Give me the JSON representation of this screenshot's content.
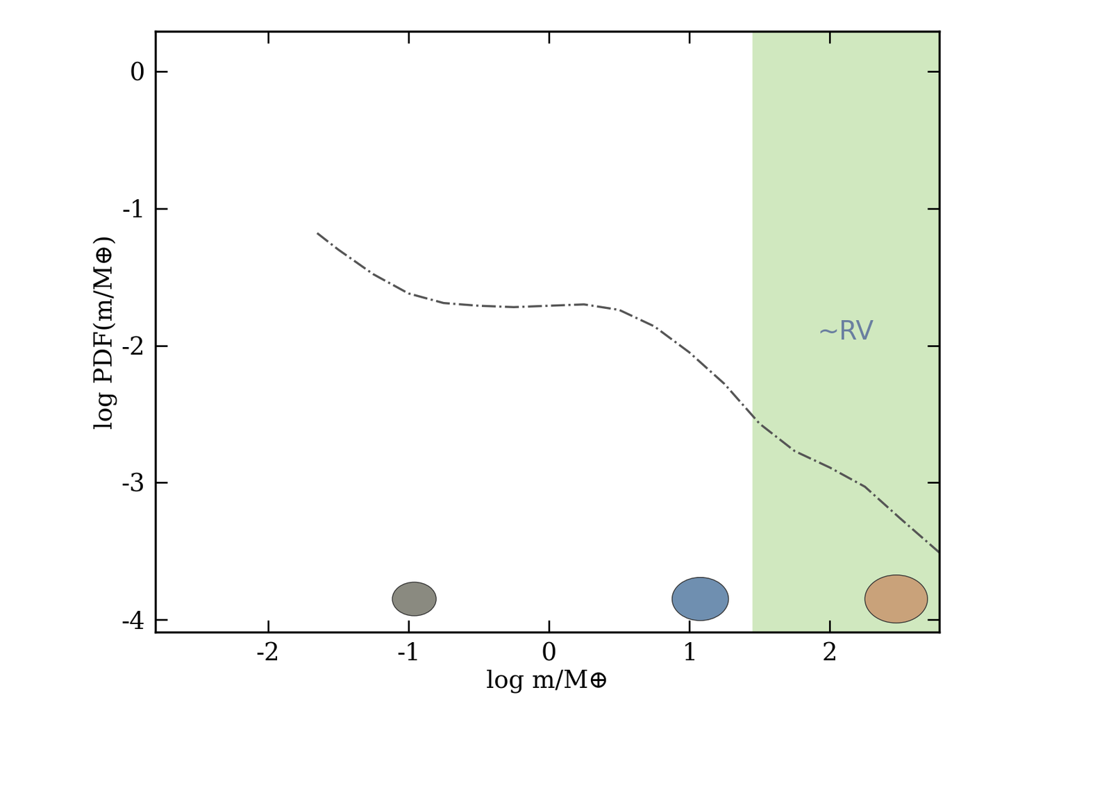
{
  "chart_data": {
    "type": "line",
    "x_label": "log m/M⊕",
    "y_label": "log PDF(m/M⊕)",
    "x": [
      -1.65,
      -1.5,
      -1.25,
      -1.0,
      -0.75,
      -0.5,
      -0.25,
      0.0,
      0.25,
      0.5,
      0.75,
      1.0,
      1.25,
      1.5,
      1.75,
      2.0,
      2.25,
      2.5,
      2.78
    ],
    "values": [
      -1.18,
      -1.3,
      -1.48,
      -1.62,
      -1.69,
      -1.71,
      -1.72,
      -1.71,
      -1.7,
      -1.74,
      -1.86,
      -2.05,
      -2.28,
      -2.57,
      -2.77,
      -2.89,
      -3.03,
      -3.26,
      -3.51
    ],
    "color": "#555555",
    "line_style": "dashdot",
    "xlim": [
      -2.8,
      2.78
    ],
    "ylim": [
      -4.09,
      0.29
    ],
    "xticks": [
      -2,
      -1,
      0,
      1,
      2
    ],
    "yticks": [
      0,
      -1,
      -2,
      -3,
      -4
    ],
    "grid": false,
    "shaded_region": {
      "label": "~RV",
      "x": [
        1.45,
        2.78
      ],
      "color": "#d0e8bf"
    }
  }
}
